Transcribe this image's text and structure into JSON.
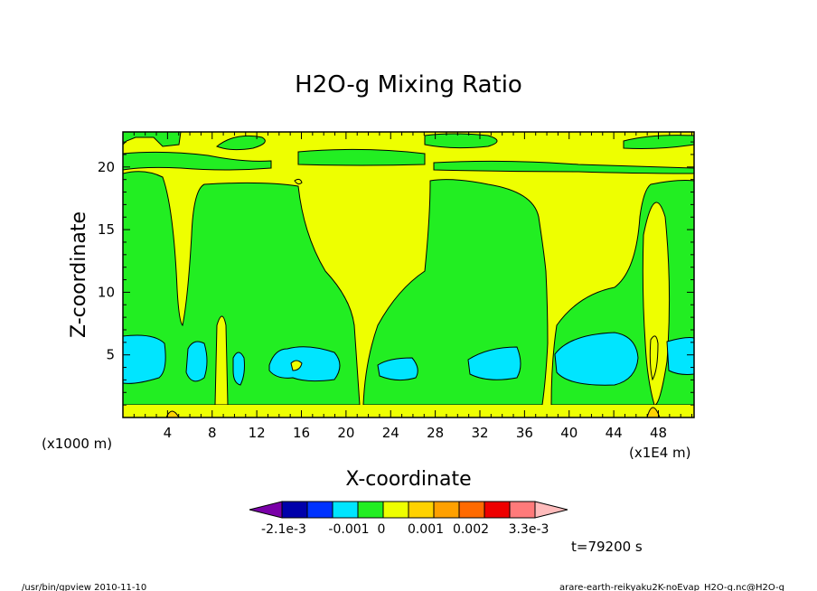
{
  "chart_data": {
    "type": "heatmap",
    "title": "H2O-g Mixing Ratio",
    "xlabel": "X-coordinate",
    "ylabel": "Z-coordinate",
    "x_units_left": "(x1000 m)",
    "x_units_right": "(x1E4 m)",
    "xlim": [
      0,
      51.2
    ],
    "ylim": [
      0,
      22.8
    ],
    "xticks": [
      4,
      8,
      12,
      16,
      20,
      24,
      28,
      32,
      36,
      40,
      44,
      48
    ],
    "yticks": [
      5,
      10,
      15,
      20
    ],
    "colorbar": {
      "colors": [
        "#7a00a8",
        "#0000aa",
        "#0033ff",
        "#00e5ff",
        "#22ee22",
        "#eeff00",
        "#ffd200",
        "#ffa000",
        "#ff6a00",
        "#ee0000",
        "#ff7a7a",
        "#ffbcbc"
      ],
      "labels": [
        "-2.1e-3",
        "-0.001",
        "0",
        "0.001",
        "0.002",
        "3.3e-3"
      ]
    },
    "time_label": "t=79200 s"
  },
  "footer": {
    "left": "/usr/bin/gpview   2010-11-10",
    "right": "arare-earth-reikyaku2K-noEvap_H2O-g.nc@H2O-g"
  }
}
